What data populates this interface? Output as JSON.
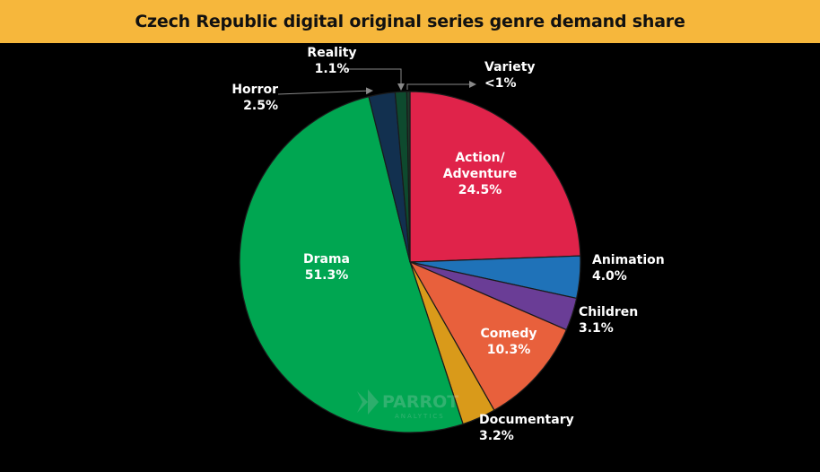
{
  "header": {
    "title": "Czech Republic digital original series genre demand share"
  },
  "watermark": {
    "brand": "PARROT",
    "sub": "ANALYTICS"
  },
  "colors": {
    "header_bg": "#F6B73C",
    "background": "#000000"
  },
  "chart_data": {
    "type": "pie",
    "title": "Czech Republic digital original series genre demand share",
    "slices": [
      {
        "name": "Action/ Adventure",
        "value": 24.5,
        "label": "24.5%",
        "color": "#E0234A"
      },
      {
        "name": "Animation",
        "value": 4.0,
        "label": "4.0%",
        "color": "#1F72B8"
      },
      {
        "name": "Children",
        "value": 3.1,
        "label": "3.1%",
        "color": "#6A3D96"
      },
      {
        "name": "Comedy",
        "value": 10.3,
        "label": "10.3%",
        "color": "#E8603C"
      },
      {
        "name": "Documentary",
        "value": 3.2,
        "label": "3.2%",
        "color": "#D99A1A"
      },
      {
        "name": "Drama",
        "value": 51.3,
        "label": "51.3%",
        "color": "#00A651"
      },
      {
        "name": "Horror",
        "value": 2.5,
        "label": "2.5%",
        "color": "#12304F"
      },
      {
        "name": "Reality",
        "value": 1.1,
        "label": "1.1%",
        "color": "#0E4A2E"
      },
      {
        "name": "Variety",
        "value": 0.3,
        "label": "<1%",
        "color": "#1B3A2A"
      }
    ]
  }
}
